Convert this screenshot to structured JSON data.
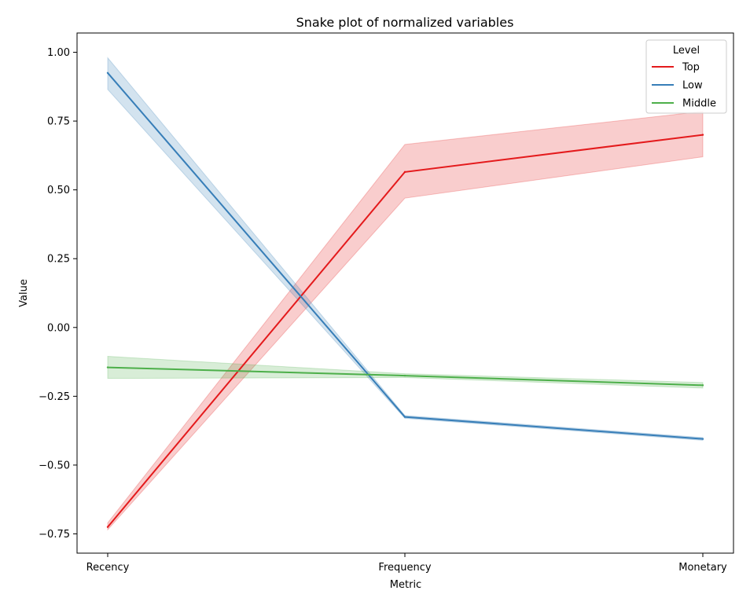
{
  "chart_data": {
    "type": "line",
    "title": "Snake plot of normalized variables",
    "xlabel": "Metric",
    "ylabel": "Value",
    "categories": [
      "Recency",
      "Frequency",
      "Monetary"
    ],
    "ylim": [
      -0.82,
      1.07
    ],
    "yticks": [
      -0.75,
      -0.5,
      -0.25,
      0.0,
      0.25,
      0.5,
      0.75,
      1.0
    ],
    "ytick_labels": [
      "−0.75",
      "−0.50",
      "−0.25",
      "0.00",
      "0.25",
      "0.50",
      "0.75",
      "1.00"
    ],
    "grid": false,
    "legend": {
      "title": "Level",
      "position": "top-right"
    },
    "series": [
      {
        "name": "Top",
        "color": "#e41a1c",
        "values": [
          -0.725,
          0.565,
          0.7
        ],
        "ci_low": [
          -0.735,
          0.47,
          0.62
        ],
        "ci_high": [
          -0.71,
          0.665,
          0.785
        ]
      },
      {
        "name": "Low",
        "color": "#377eb8",
        "values": [
          0.925,
          -0.325,
          -0.405
        ],
        "ci_low": [
          0.865,
          -0.33,
          -0.41
        ],
        "ci_high": [
          0.98,
          -0.32,
          -0.4
        ]
      },
      {
        "name": "Middle",
        "color": "#4daf4a",
        "values": [
          -0.145,
          -0.175,
          -0.21
        ],
        "ci_low": [
          -0.185,
          -0.182,
          -0.22
        ],
        "ci_high": [
          -0.105,
          -0.168,
          -0.2
        ]
      }
    ]
  }
}
